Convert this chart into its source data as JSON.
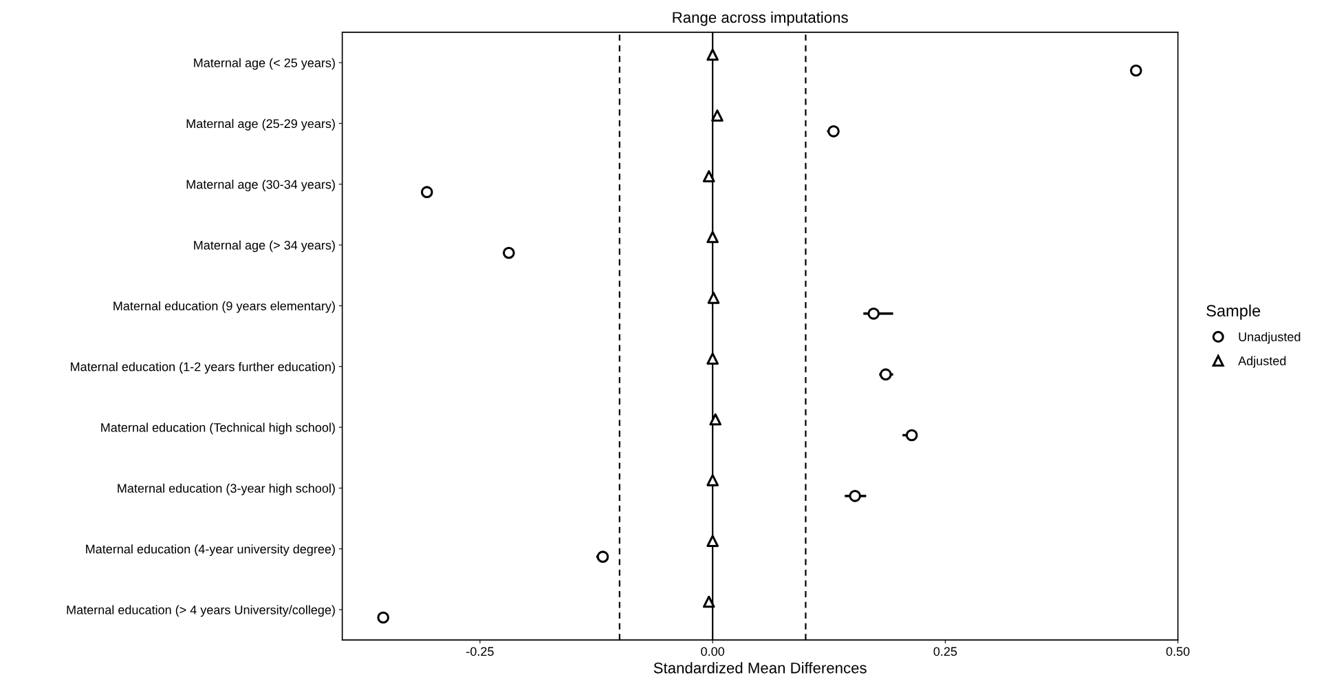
{
  "chart_data": {
    "type": "scatter",
    "orientation": "horizontal",
    "title": "Range across imputations",
    "xlabel": "Standardized Mean Differences",
    "legend_title": "Sample",
    "legend": "right",
    "grid": false,
    "categories": [
      "Maternal age (< 25 years)",
      "Maternal age (25-29 years)",
      "Maternal age (30-34 years)",
      "Maternal age (> 34 years)",
      "Maternal education (9 years elementary)",
      "Maternal education (1-2 years further education)",
      "Maternal education (Technical high school)",
      "Maternal education (3-year high school)",
      "Maternal education (4-year university degree)",
      "Maternal education (> 4 years University/college)"
    ],
    "series": [
      {
        "name": "Unadjusted",
        "color": "#000000",
        "marker": "circle",
        "values": [
          0.455,
          0.13,
          -0.307,
          -0.219,
          0.173,
          0.186,
          0.214,
          0.153,
          -0.118,
          -0.354
        ],
        "errors": [
          [
            0.45,
            0.46
          ],
          [
            0.123,
            0.132
          ],
          null,
          [
            -0.224,
            -0.214
          ],
          [
            0.162,
            0.194
          ],
          [
            0.179,
            0.194
          ],
          [
            0.204,
            0.219
          ],
          [
            0.142,
            0.165
          ],
          [
            -0.125,
            -0.113
          ],
          [
            -0.359,
            -0.35
          ]
        ]
      },
      {
        "name": "Adjusted",
        "color": "#000000",
        "marker": "triangle",
        "values": [
          0.0,
          0.005,
          -0.004,
          0.0,
          0.001,
          0.0,
          0.003,
          0.0,
          0.0,
          -0.004
        ]
      }
    ],
    "xlim": [
      -0.398,
      0.5
    ],
    "xticks": [
      {
        "value": -0.25,
        "label": "-0.25"
      },
      {
        "value": 0,
        "label": "0.00"
      },
      {
        "value": 0.25,
        "label": "0.25"
      },
      {
        "value": 0.5,
        "label": "0.50"
      }
    ],
    "ref_lines": [
      {
        "axis": "x",
        "value": -0.1,
        "line_style": "dashed"
      },
      {
        "axis": "x",
        "value": 0,
        "line_style": "solid"
      },
      {
        "axis": "x",
        "value": 0.1,
        "line_style": "dashed"
      }
    ]
  }
}
